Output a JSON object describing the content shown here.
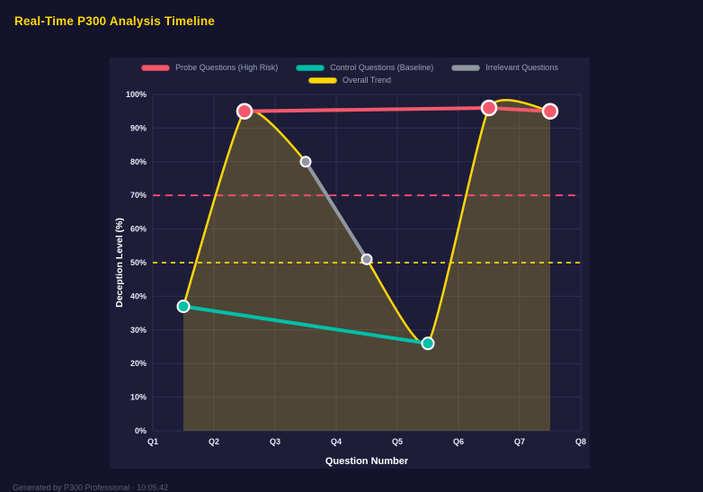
{
  "header": {
    "title": "Real-Time P300 Analysis Timeline"
  },
  "footer": {
    "text": "Generated by P300 Professional · 10:05:42"
  },
  "colors": {
    "background": "#13132b",
    "panel": "#1d1d39",
    "title": "#ffd60a",
    "grid": "rgba(150,160,230,0.13)",
    "tick_text": "#e6e9f4",
    "axis_label": "#ffffff",
    "legend_text": "#9aa0b4",
    "footer_text": "#5e5e76",
    "marker_stroke": "#ffffff"
  },
  "chart_data": {
    "type": "line",
    "title": "Real-Time P300 Analysis Timeline",
    "xlabel": "Question Number",
    "ylabel": "Deception Level (%)",
    "x_range": [
      1,
      8
    ],
    "y_range": [
      0,
      100
    ],
    "x_ticks": [
      "Q1",
      "Q2",
      "Q3",
      "Q4",
      "Q5",
      "Q6",
      "Q7",
      "Q8"
    ],
    "y_ticks": [
      "0%",
      "10%",
      "20%",
      "30%",
      "40%",
      "50%",
      "60%",
      "70%",
      "80%",
      "90%",
      "100%"
    ],
    "grid": true,
    "legend_position": "top",
    "series": [
      {
        "name": "Probe Questions (High Risk)",
        "color": "#f4586d",
        "x": [
          2.5,
          6.5,
          7.5
        ],
        "values": [
          95,
          96,
          95
        ],
        "line_width": 4,
        "marker_radius": 8,
        "legend_row": 0
      },
      {
        "name": "Control Questions (Baseline)",
        "color": "#00bfa8",
        "x": [
          1.5,
          5.5
        ],
        "values": [
          37,
          26
        ],
        "line_width": 4,
        "marker_radius": 6.5,
        "legend_row": 0
      },
      {
        "name": "Irrelevant Questions",
        "color": "#9097a2",
        "x": [
          3.5,
          4.5
        ],
        "values": [
          80,
          51
        ],
        "line_width": 4,
        "marker_radius": 5.5,
        "legend_row": 0
      },
      {
        "name": "Overall Trend",
        "color": "#ffd60a",
        "x": [
          1.5,
          2.5,
          3.5,
          4.5,
          5.5,
          6.5,
          7.5
        ],
        "values": [
          37,
          95,
          80,
          51,
          26,
          96,
          95
        ],
        "line_width": 2.5,
        "marker_radius": 0,
        "smooth": true,
        "fill": true,
        "fill_color": "rgba(255,215,40,0.22)",
        "legend_row": 1
      }
    ],
    "thresholds": [
      {
        "name": "high-risk-threshold",
        "value": 70,
        "color": "#ff4d6d",
        "dash": "8 6",
        "width": 1.8
      },
      {
        "name": "baseline-threshold",
        "value": 50,
        "color": "#ffd60a",
        "dash": "5 5",
        "width": 1.8
      }
    ]
  }
}
